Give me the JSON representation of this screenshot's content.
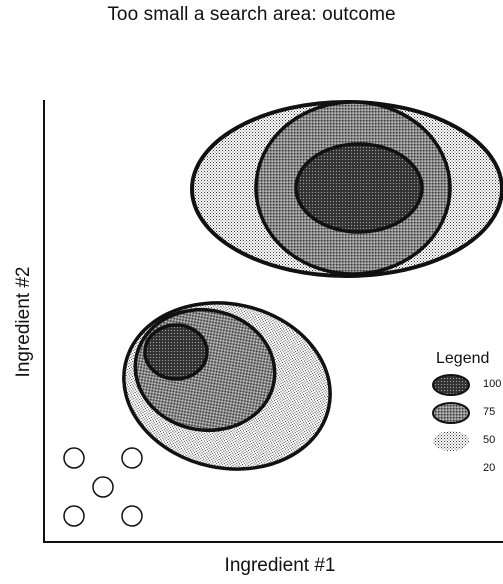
{
  "title": "Too small a search area: outcome",
  "x_axis_label": "Ingredient #1",
  "y_axis_label": "Ingredient #2",
  "legend": {
    "title": "Legend",
    "items": [
      {
        "label": "100",
        "pattern": "dense"
      },
      {
        "label": "75",
        "pattern": "medium"
      },
      {
        "label": "50",
        "pattern": "light"
      },
      {
        "label": "20",
        "pattern": "none"
      }
    ]
  },
  "colors": {
    "outline": "#111111",
    "background": "#ffffff"
  },
  "sample_points_count": 5
}
